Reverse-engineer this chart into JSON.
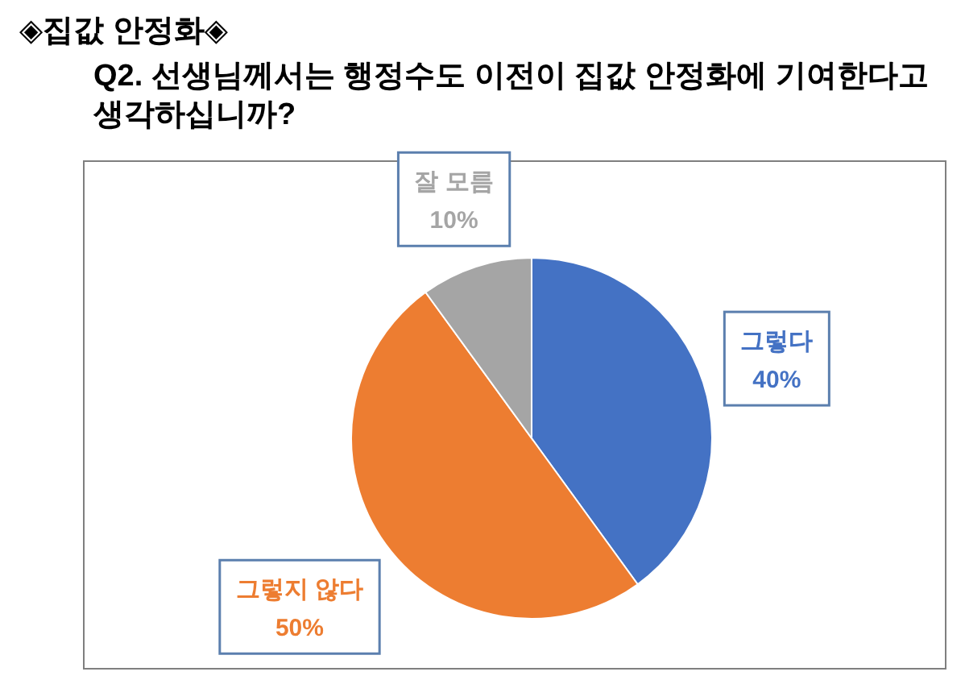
{
  "chart_data": {
    "type": "pie",
    "title": "◈집값 안정화◈",
    "subtitle": "Q2. 선생님께서는 행정수도 이전이 집값 안정화에 기여한다고 생각하십니까?",
    "categories": [
      "그렇다",
      "그렇지 않다",
      "잘 모름"
    ],
    "values": [
      40,
      50,
      10
    ],
    "colors": [
      "#4472c4",
      "#ed7d31",
      "#a5a5a5"
    ],
    "value_labels": [
      "40%",
      "50%",
      "10%"
    ]
  }
}
